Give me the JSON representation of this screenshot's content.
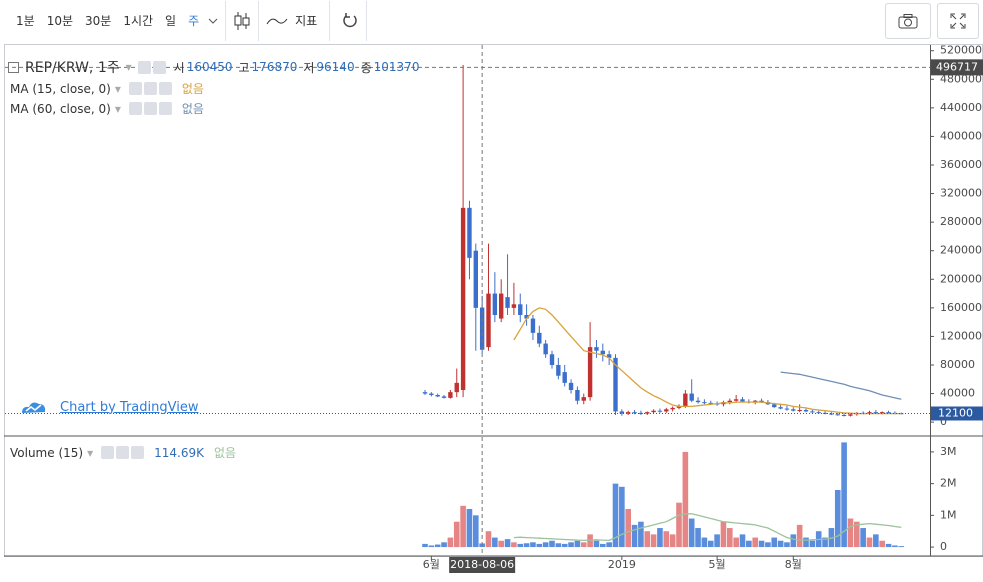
{
  "toolbar": {
    "intervals": [
      "1분",
      "10분",
      "30분",
      "1시간",
      "일",
      "주"
    ],
    "selected": 5,
    "indicator": "지표"
  },
  "watermark": "Chart by TradingView",
  "chart_data": [
    {
      "type": "candlestick",
      "title": "REP/KRW, 1주",
      "ohlc_labels": [
        "시",
        "고",
        "저",
        "종"
      ],
      "categories": [
        null,
        "6월",
        null,
        null,
        null,
        null,
        null,
        null,
        null,
        null,
        null,
        null,
        null,
        null,
        null,
        null,
        null,
        null,
        null,
        null,
        null,
        null,
        null,
        null,
        null,
        null,
        null,
        null,
        null,
        null,
        null,
        "2019",
        null,
        null,
        null,
        null,
        null,
        null,
        null,
        null,
        null,
        null,
        null,
        null,
        null,
        null,
        "5월",
        null,
        null,
        null,
        null,
        null,
        null,
        null,
        null,
        null,
        null,
        null,
        "8월",
        null,
        null,
        null,
        null,
        null,
        null,
        null,
        null,
        null,
        null,
        null,
        null,
        null,
        null,
        null,
        null,
        null
      ],
      "crosshair_date": "2018-08-06",
      "crosshair_price": 496717,
      "up_color": "#c0312f",
      "down_color": "#3b6fcb",
      "open": [
        42000,
        40000,
        38000,
        36000,
        34000,
        42000,
        45000,
        300000,
        240000,
        160450,
        105000,
        180000,
        145000,
        175000,
        160000,
        165000,
        150000,
        145000,
        125000,
        110000,
        95000,
        80000,
        70000,
        55000,
        45000,
        30000,
        35000,
        105000,
        100000,
        95000,
        90000,
        15000,
        12000,
        14000,
        13000,
        12000,
        14000,
        16000,
        15000,
        18000,
        20000,
        22000,
        40000,
        30000,
        28000,
        27000,
        26000,
        25000,
        28000,
        30000,
        32000,
        29000,
        28000,
        30000,
        28000,
        25000,
        21000,
        19000,
        18000,
        16000,
        17000,
        15000,
        14000,
        13000,
        12000,
        11000,
        10000,
        9000,
        11000,
        13000,
        12000,
        14000,
        13000,
        14000,
        13000,
        12500
      ],
      "high": [
        45000,
        42000,
        40000,
        38000,
        45000,
        75000,
        500000,
        310000,
        250000,
        176870,
        250000,
        210000,
        200000,
        235000,
        195000,
        180000,
        165000,
        150000,
        135000,
        115000,
        100000,
        90000,
        80000,
        60000,
        50000,
        40000,
        140000,
        115000,
        110000,
        100000,
        95000,
        18000,
        16000,
        17000,
        16000,
        15000,
        18000,
        19000,
        20000,
        22000,
        25000,
        45000,
        60000,
        35000,
        32000,
        30000,
        29000,
        30000,
        33000,
        38000,
        35000,
        32000,
        31000,
        33000,
        31000,
        27000,
        24000,
        23000,
        21000,
        25000,
        19000,
        17000,
        16000,
        15000,
        14000,
        13000,
        12000,
        12000,
        14000,
        15000,
        16000,
        17000,
        15000,
        16000,
        15000,
        13500
      ],
      "low": [
        38000,
        36000,
        35000,
        33000,
        33000,
        35000,
        35000,
        200000,
        100000,
        96140,
        100000,
        140000,
        140000,
        150000,
        150000,
        140000,
        135000,
        115000,
        105000,
        90000,
        75000,
        60000,
        50000,
        40000,
        25000,
        25000,
        30000,
        90000,
        85000,
        80000,
        10000,
        9000,
        10000,
        11000,
        10000,
        10000,
        12000,
        13000,
        13000,
        15000,
        18000,
        20000,
        28000,
        26000,
        25000,
        24000,
        23000,
        22000,
        25000,
        27000,
        28000,
        26000,
        25000,
        27000,
        24000,
        20000,
        18000,
        16000,
        15000,
        14000,
        14000,
        13000,
        12000,
        11000,
        10000,
        9000,
        8000,
        8000,
        9000,
        11000,
        10000,
        12000,
        11000,
        12000,
        11000,
        11000
      ],
      "close": [
        40000,
        38000,
        36000,
        34000,
        42000,
        55000,
        300000,
        230000,
        160000,
        101370,
        180000,
        150000,
        180000,
        160000,
        165000,
        150000,
        145000,
        125000,
        110000,
        95000,
        80000,
        65000,
        55000,
        45000,
        30000,
        35000,
        105000,
        100000,
        95000,
        90000,
        15000,
        12000,
        14000,
        13000,
        12000,
        14000,
        16000,
        15000,
        18000,
        20000,
        22000,
        40000,
        30000,
        28000,
        27000,
        26000,
        25000,
        28000,
        30000,
        32000,
        29000,
        28000,
        30000,
        28000,
        25000,
        21000,
        19000,
        18000,
        16000,
        17000,
        15000,
        14000,
        13000,
        12000,
        11000,
        10000,
        9000,
        11000,
        13000,
        12000,
        14000,
        13000,
        14000,
        13000,
        12500,
        12100
      ],
      "series": [
        {
          "name": "MA (15, close, 0)",
          "status": "없음",
          "color": "#d9a23c",
          "values": [
            null,
            null,
            null,
            null,
            null,
            null,
            null,
            null,
            null,
            null,
            null,
            null,
            null,
            null,
            115000,
            130000,
            145000,
            155000,
            160000,
            158000,
            150000,
            140000,
            130000,
            120000,
            110000,
            100000,
            98000,
            96000,
            94000,
            90000,
            80000,
            72000,
            64000,
            56000,
            48000,
            42000,
            37000,
            33000,
            28000,
            24000,
            22000,
            22000,
            22000,
            23000,
            24000,
            25000,
            26000,
            27000,
            27000,
            28000,
            28000,
            28000,
            28000,
            28000,
            27000,
            26000,
            25000,
            24000,
            22000,
            21000,
            20000,
            18000,
            17000,
            16000,
            15000,
            14000,
            13000,
            12500,
            12000,
            12000,
            12000,
            12000,
            12000,
            12000,
            12000,
            12000
          ]
        },
        {
          "name": "MA (60, close, 0)",
          "status": "없음",
          "color": "#6f8fb3",
          "values": [
            null,
            null,
            null,
            null,
            null,
            null,
            null,
            null,
            null,
            null,
            null,
            null,
            null,
            null,
            null,
            null,
            null,
            null,
            null,
            null,
            null,
            null,
            null,
            null,
            null,
            null,
            null,
            null,
            null,
            null,
            null,
            null,
            null,
            null,
            null,
            null,
            null,
            null,
            null,
            null,
            null,
            null,
            null,
            null,
            null,
            null,
            null,
            null,
            null,
            null,
            null,
            null,
            null,
            null,
            null,
            null,
            70000,
            69000,
            68000,
            67000,
            65000,
            63000,
            61000,
            59000,
            57000,
            55000,
            53000,
            50000,
            48000,
            46000,
            44000,
            41000,
            38000,
            36000,
            34000,
            32000
          ]
        }
      ],
      "ylim": [
        -18000,
        528000
      ],
      "yticks": [
        0,
        40000,
        80000,
        120000,
        160000,
        200000,
        240000,
        280000,
        320000,
        360000,
        400000,
        440000,
        480000,
        520000
      ]
    },
    {
      "type": "bar",
      "title": "Volume (15)",
      "status": "없음",
      "up_color": "#e58585",
      "down_color": "#5a8ddb",
      "values": [
        100000,
        50000,
        80000,
        150000,
        300000,
        800000,
        1300000,
        1200000,
        1000000,
        114690,
        500000,
        300000,
        200000,
        250000,
        150000,
        100000,
        120000,
        150000,
        100000,
        150000,
        200000,
        120000,
        100000,
        150000,
        200000,
        150000,
        400000,
        200000,
        100000,
        150000,
        2000000,
        1900000,
        1200000,
        700000,
        800000,
        500000,
        400000,
        600000,
        500000,
        400000,
        1400000,
        3000000,
        900000,
        600000,
        300000,
        200000,
        400000,
        800000,
        600000,
        300000,
        400000,
        200000,
        300000,
        200000,
        150000,
        300000,
        200000,
        150000,
        400000,
        700000,
        300000,
        200000,
        500000,
        300000,
        600000,
        1800000,
        3300000,
        900000,
        800000,
        600000,
        300000,
        400000,
        200000,
        100000,
        50000,
        30000
      ],
      "value_labels": [
        null,
        null,
        null,
        null,
        null,
        null,
        null,
        null,
        null,
        "114.69K",
        null,
        null,
        null,
        null,
        null,
        null,
        null,
        null,
        null,
        null,
        null,
        null,
        null,
        null,
        null,
        null,
        null,
        null,
        null,
        null,
        null,
        null,
        null,
        null,
        null,
        null,
        null,
        null,
        null,
        null,
        null,
        null,
        null,
        null,
        null,
        null,
        null,
        null,
        null,
        null,
        null,
        null,
        null,
        null,
        null,
        null,
        null,
        null,
        null,
        null,
        null,
        null,
        null,
        null,
        null,
        null,
        null,
        null,
        null,
        null,
        null,
        null,
        null,
        null,
        null,
        null
      ],
      "series": [
        {
          "color": "#9cc29c",
          "values": [
            null,
            null,
            null,
            null,
            null,
            null,
            null,
            null,
            null,
            null,
            null,
            null,
            null,
            null,
            300000,
            310000,
            300000,
            290000,
            280000,
            270000,
            260000,
            250000,
            240000,
            230000,
            220000,
            210000,
            220000,
            230000,
            220000,
            210000,
            300000,
            400000,
            480000,
            540000,
            600000,
            650000,
            700000,
            750000,
            800000,
            900000,
            1000000,
            1050000,
            1050000,
            1000000,
            950000,
            900000,
            850000,
            800000,
            780000,
            760000,
            740000,
            720000,
            700000,
            650000,
            600000,
            500000,
            400000,
            300000,
            250000,
            220000,
            220000,
            230000,
            240000,
            250000,
            280000,
            350000,
            500000,
            650000,
            700000,
            720000,
            740000,
            720000,
            700000,
            680000,
            650000,
            620000
          ]
        }
      ],
      "ylim": [
        -250000,
        3470000
      ],
      "yticks": [
        0,
        {
          "value": 1000000,
          "label": "1M"
        },
        {
          "value": 2000000,
          "label": "2M"
        },
        {
          "value": 3000000,
          "label": "3M"
        }
      ]
    }
  ]
}
